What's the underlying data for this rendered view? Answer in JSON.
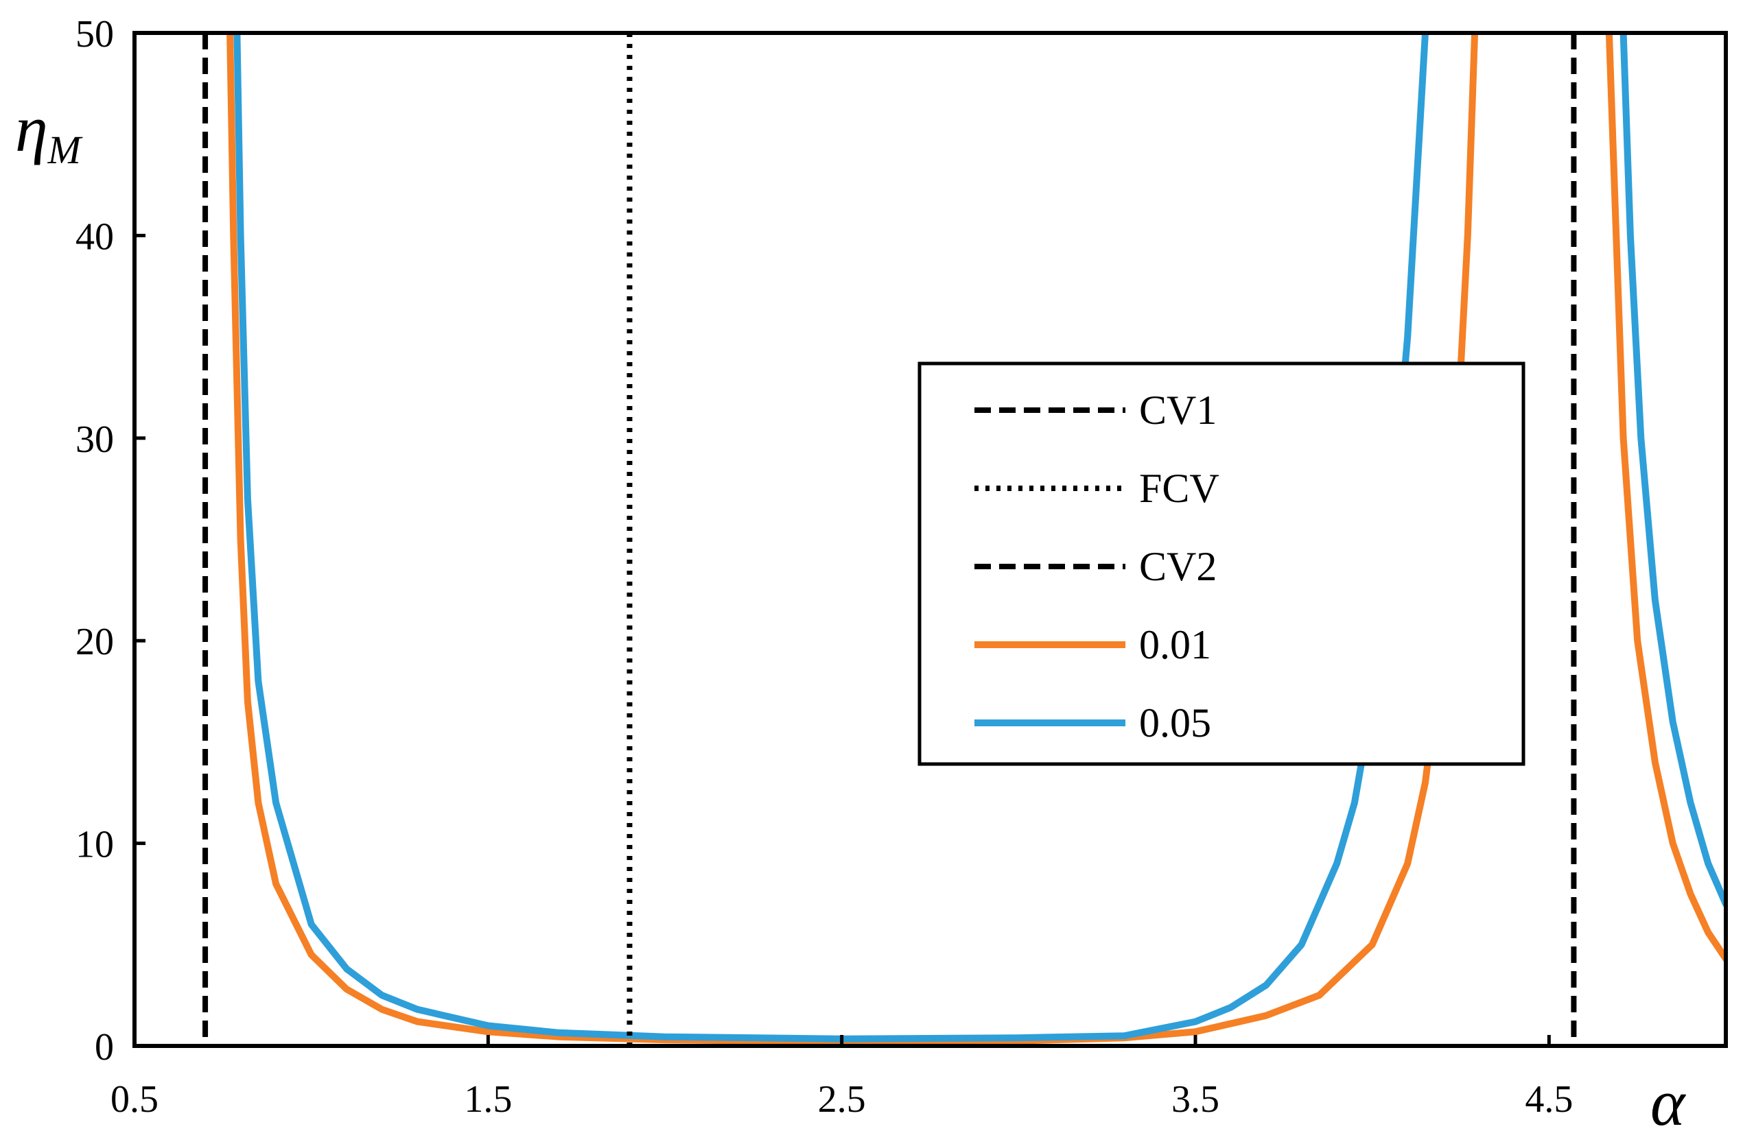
{
  "chart_data": {
    "type": "line",
    "xlabel": "α",
    "ylabel": "η",
    "ylabel_subscript": "M",
    "xlim": [
      0.5,
      5.0
    ],
    "ylim": [
      0,
      50
    ],
    "xticks": [
      0.5,
      1.5,
      2.5,
      3.5,
      4.5
    ],
    "xtick_labels": [
      "0.5",
      "1.5",
      "2.5",
      "3.5",
      "4.5"
    ],
    "yticks": [
      0,
      10,
      20,
      30,
      40,
      50
    ],
    "ytick_labels": [
      "0",
      "10",
      "20",
      "30",
      "40",
      "50"
    ],
    "grid": false,
    "legend_position": "center-right",
    "vlines": [
      {
        "name": "CV1",
        "x": 0.7,
        "style": "dashed",
        "color": "#000000"
      },
      {
        "name": "FCV",
        "x": 1.9,
        "style": "dotted",
        "color": "#000000"
      },
      {
        "name": "CV2",
        "x": 4.57,
        "style": "dashed",
        "color": "#000000"
      }
    ],
    "series": [
      {
        "name": "0.01",
        "color": "#F58025",
        "segments": [
          [
            [
              0.77,
              50
            ],
            [
              0.78,
              40
            ],
            [
              0.8,
              25
            ],
            [
              0.82,
              17
            ],
            [
              0.85,
              12
            ],
            [
              0.9,
              8
            ],
            [
              1.0,
              4.5
            ],
            [
              1.1,
              2.8
            ],
            [
              1.2,
              1.8
            ],
            [
              1.3,
              1.2
            ],
            [
              1.5,
              0.7
            ],
            [
              1.7,
              0.45
            ],
            [
              2.0,
              0.3
            ],
            [
              2.5,
              0.2
            ],
            [
              3.0,
              0.25
            ],
            [
              3.3,
              0.4
            ],
            [
              3.5,
              0.7
            ],
            [
              3.7,
              1.5
            ],
            [
              3.85,
              2.5
            ],
            [
              4.0,
              5
            ],
            [
              4.1,
              9
            ],
            [
              4.15,
              13
            ],
            [
              4.2,
              20
            ],
            [
              4.24,
              30
            ],
            [
              4.27,
              40
            ],
            [
              4.29,
              50
            ]
          ],
          [
            [
              4.67,
              50
            ],
            [
              4.69,
              40
            ],
            [
              4.71,
              30
            ],
            [
              4.75,
              20
            ],
            [
              4.8,
              14
            ],
            [
              4.85,
              10
            ],
            [
              4.9,
              7.5
            ],
            [
              4.95,
              5.6
            ],
            [
              5.0,
              4.3
            ]
          ]
        ]
      },
      {
        "name": "0.05",
        "color": "#2E9FD9",
        "segments": [
          [
            [
              0.79,
              50
            ],
            [
              0.8,
              40
            ],
            [
              0.82,
              27
            ],
            [
              0.85,
              18
            ],
            [
              0.9,
              12
            ],
            [
              1.0,
              6
            ],
            [
              1.1,
              3.8
            ],
            [
              1.2,
              2.5
            ],
            [
              1.3,
              1.8
            ],
            [
              1.5,
              1.0
            ],
            [
              1.7,
              0.65
            ],
            [
              2.0,
              0.45
            ],
            [
              2.5,
              0.35
            ],
            [
              3.0,
              0.4
            ],
            [
              3.3,
              0.5
            ],
            [
              3.5,
              1.2
            ],
            [
              3.6,
              1.9
            ],
            [
              3.7,
              3
            ],
            [
              3.8,
              5
            ],
            [
              3.9,
              9
            ],
            [
              3.95,
              12
            ],
            [
              4.0,
              17
            ],
            [
              4.05,
              25
            ],
            [
              4.1,
              35
            ],
            [
              4.13,
              44
            ],
            [
              4.15,
              50
            ]
          ],
          [
            [
              4.71,
              50
            ],
            [
              4.73,
              40
            ],
            [
              4.76,
              30
            ],
            [
              4.8,
              22
            ],
            [
              4.85,
              16
            ],
            [
              4.9,
              12
            ],
            [
              4.95,
              9
            ],
            [
              5.0,
              7
            ]
          ]
        ]
      }
    ]
  }
}
